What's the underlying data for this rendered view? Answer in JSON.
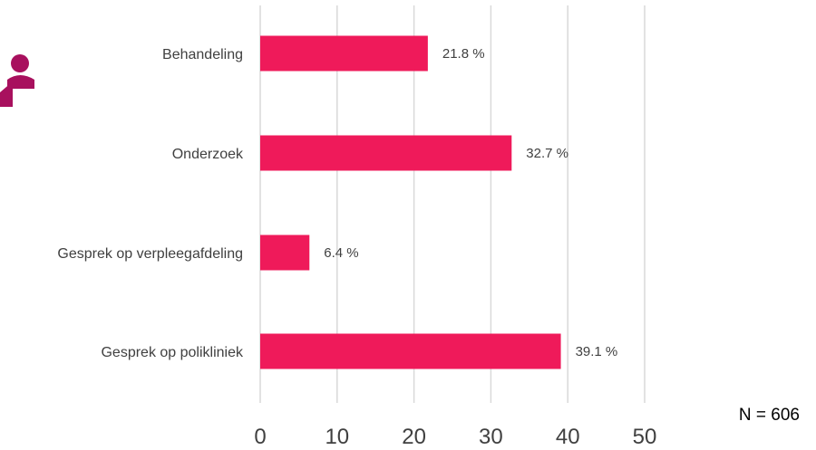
{
  "icons": {
    "person": "person-icon",
    "icon_color": "#a8105e"
  },
  "colors": {
    "bar": "#ef1a5a",
    "grid": "#d9d9d9",
    "text": "#404040"
  },
  "sample_size": "N = 606",
  "chart_data": {
    "type": "bar",
    "orientation": "horizontal",
    "title": "",
    "xlabel": "",
    "ylabel": "",
    "categories": [
      "Behandeling",
      "Onderzoek",
      "Gesprek op verpleegafdeling",
      "Gesprek op polikliniek"
    ],
    "values": [
      21.8,
      32.7,
      6.4,
      39.1
    ],
    "data_labels": [
      "21.8 %",
      "32.7 %",
      "6.4 %",
      "39.1 %"
    ],
    "xlim": [
      0,
      50
    ],
    "ticks": [
      0,
      10,
      20,
      30,
      40,
      50
    ],
    "tick_labels": [
      "0",
      "10",
      "20",
      "30",
      "40",
      "50"
    ],
    "grid": true,
    "legend": "none"
  }
}
